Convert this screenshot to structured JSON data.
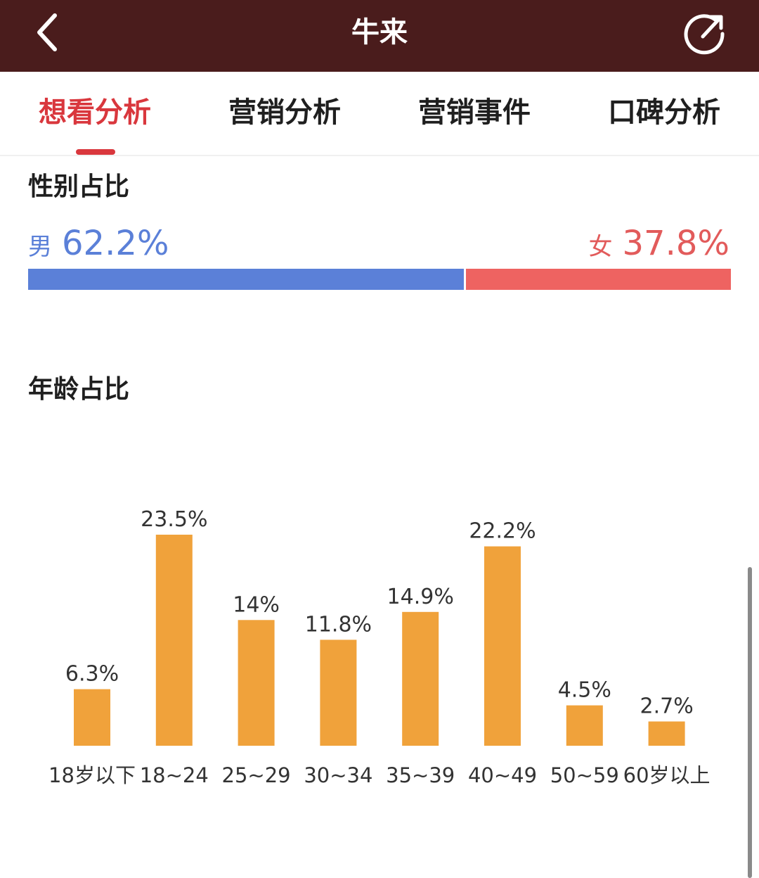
{
  "header": {
    "title": "牛来",
    "back_icon": "chevron-left-icon",
    "share_icon": "share-icon",
    "background_color": "#4a1c1c"
  },
  "tabs": [
    {
      "label": "想看分析",
      "active": true
    },
    {
      "label": "营销分析",
      "active": false
    },
    {
      "label": "营销事件",
      "active": false
    },
    {
      "label": "口碑分析",
      "active": false
    }
  ],
  "accent_color": "#d9373d",
  "gender": {
    "title": "性别占比",
    "male": {
      "label": "男",
      "value": "62.2%",
      "fraction": 0.622,
      "color": "#5b80d8"
    },
    "female": {
      "label": "女",
      "value": "37.8%",
      "fraction": 0.378,
      "color": "#ee6361"
    }
  },
  "age": {
    "title": "年龄占比",
    "bar_color": "#f0a23b"
  },
  "chart_data": {
    "type": "bar",
    "categories": [
      "18岁以下",
      "18~24",
      "25~29",
      "30~34",
      "35~39",
      "40~49",
      "50~59",
      "60岁以上"
    ],
    "values": [
      6.3,
      23.5,
      14,
      11.8,
      14.9,
      22.2,
      4.5,
      2.7
    ],
    "data_labels": [
      "6.3%",
      "23.5%",
      "14%",
      "11.8%",
      "14.9%",
      "22.2%",
      "4.5%",
      "2.7%"
    ],
    "title": "年龄占比",
    "xlabel": "",
    "ylabel": "",
    "grid": false
  }
}
